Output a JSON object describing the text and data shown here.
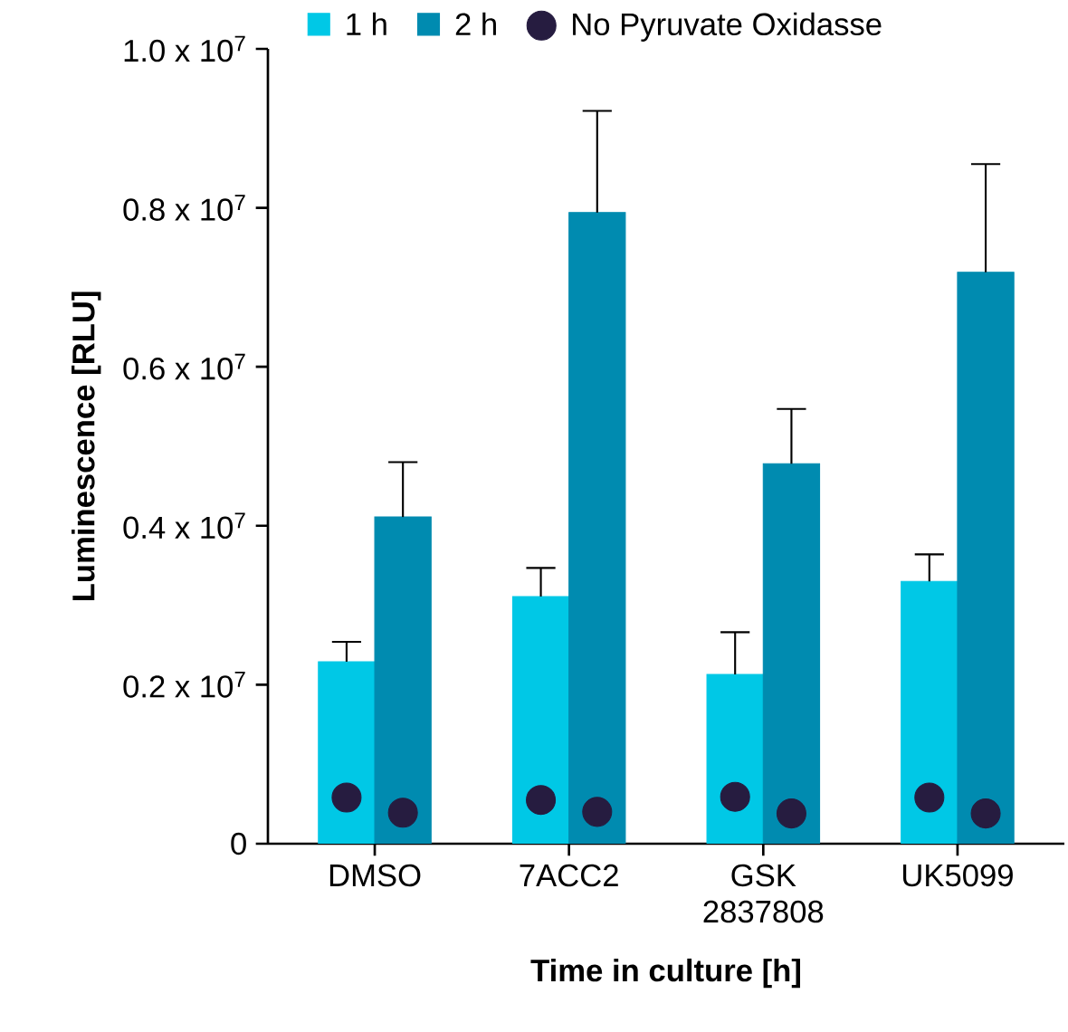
{
  "chart_data": {
    "type": "bar",
    "xlabel": "Time in culture [h]",
    "ylabel": "Luminescence [RLU]",
    "categories": [
      "DMSO",
      "7ACC2",
      "GSK 2837808",
      "UK5099"
    ],
    "series": [
      {
        "name": "1 h",
        "color": "#00c8e6",
        "values": [
          2290000,
          3110000,
          2130000,
          3300000
        ],
        "errors": [
          [
            2290000,
            2540000
          ],
          [
            3110000,
            3470000
          ],
          [
            2130000,
            2660000
          ],
          [
            3300000,
            3640000
          ]
        ]
      },
      {
        "name": "2 h",
        "color": "#008bb0",
        "values": [
          4110000,
          7940000,
          4780000,
          7190000
        ],
        "errors": [
          [
            4110000,
            4800000
          ],
          [
            7940000,
            9220000
          ],
          [
            4780000,
            5470000
          ],
          [
            7190000,
            8550000
          ]
        ]
      },
      {
        "name": "No Pyruvate Oxidasse",
        "type": "scatter",
        "color": "#261c40",
        "x": [
          "DMSO",
          "7ACC2",
          "GSK 2837808",
          "UK5099"
        ],
        "values": [
          580000,
          550000,
          590000,
          580000
        ]
      },
      {
        "type": "scatter",
        "color": "#261c40",
        "x": [
          "DMSO",
          "7ACC2",
          "GSK 2837808",
          "UK5099"
        ],
        "values": [
          390000,
          400000,
          380000,
          380000
        ]
      }
    ],
    "ylim": [
      0,
      10000000
    ],
    "yticks": [
      0,
      {
        "value": 2000000,
        "label": "0.2 x 10$^{7}$"
      },
      {
        "value": 4000000,
        "label": "0.4 x 10$^{7}$"
      },
      {
        "value": 6000000,
        "label": "0.6 x 10$^{7}$"
      },
      {
        "value": 8000000,
        "label": "0.8 x 10$^{7}$"
      },
      {
        "value": 10000000,
        "label": "1.0 x 10$^{7}$"
      }
    ],
    "legend": "top",
    "marker": "circle",
    "grid": false
  }
}
